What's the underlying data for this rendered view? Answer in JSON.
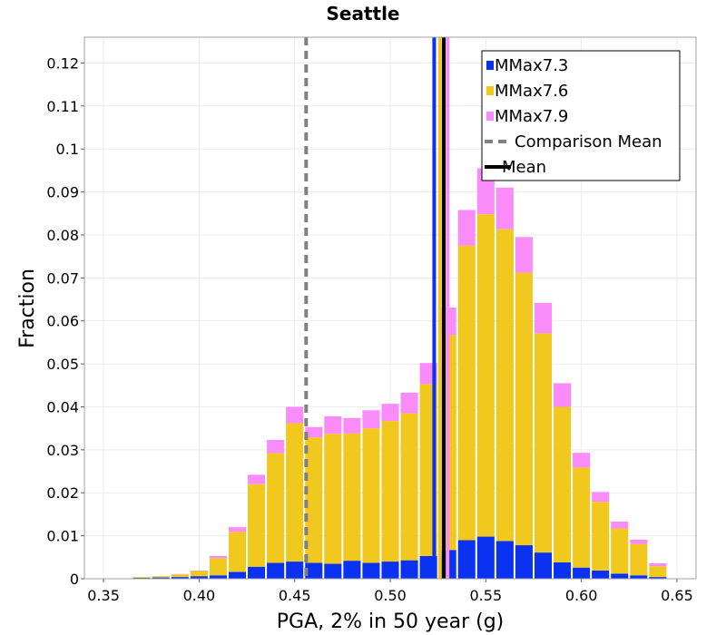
{
  "chart_data": {
    "type": "bar",
    "stacked": true,
    "title": "Seattle",
    "xlabel": "PGA, 2% in 50 year (g)",
    "ylabel": "Fraction",
    "xlim": [
      0.34,
      0.66
    ],
    "ylim": [
      0,
      0.126
    ],
    "xticks": [
      0.35,
      0.4,
      0.45,
      0.5,
      0.55,
      0.6,
      0.65
    ],
    "xtick_labels": [
      "0.35",
      "0.40",
      "0.45",
      "0.50",
      "0.55",
      "0.60",
      "0.65"
    ],
    "yticks": [
      0,
      0.01,
      0.02,
      0.03,
      0.04,
      0.05,
      0.06,
      0.07,
      0.08,
      0.09,
      0.1,
      0.11,
      0.12
    ],
    "ytick_labels": [
      "0",
      "0.01",
      "0.02",
      "0.03",
      "0.04",
      "0.05",
      "0.06",
      "0.07",
      "0.08",
      "0.09",
      "0.1",
      "0.11",
      "0.12"
    ],
    "grid": true,
    "legend_position": "top-right",
    "bin_centers": [
      0.37,
      0.38,
      0.39,
      0.4,
      0.41,
      0.42,
      0.43,
      0.44,
      0.45,
      0.46,
      0.47,
      0.48,
      0.49,
      0.5,
      0.51,
      0.52,
      0.53,
      0.54,
      0.55,
      0.56,
      0.57,
      0.58,
      0.59,
      0.6,
      0.61,
      0.62,
      0.63,
      0.64
    ],
    "series": [
      {
        "name": "MMax7.3",
        "color": "#0a32f0",
        "values": [
          0.0002,
          0.0003,
          0.0004,
          0.0006,
          0.0008,
          0.0016,
          0.0028,
          0.0037,
          0.004,
          0.0037,
          0.0035,
          0.0042,
          0.0037,
          0.004,
          0.0043,
          0.0053,
          0.0067,
          0.009,
          0.0098,
          0.0088,
          0.0078,
          0.0061,
          0.0038,
          0.0026,
          0.0019,
          0.0012,
          0.0008,
          0.0004
        ]
      },
      {
        "name": "MMax7.6",
        "color": "#f0c81e",
        "values": [
          0.0002,
          0.0003,
          0.0006,
          0.0012,
          0.004,
          0.0093,
          0.0192,
          0.0255,
          0.0322,
          0.0292,
          0.0302,
          0.0296,
          0.0313,
          0.0327,
          0.0342,
          0.04,
          0.05,
          0.0685,
          0.075,
          0.0725,
          0.0634,
          0.051,
          0.0362,
          0.0233,
          0.016,
          0.0105,
          0.0073,
          0.0025
        ]
      },
      {
        "name": "MMax7.9",
        "color": "#fa8cfa",
        "values": [
          0.0,
          0.0,
          0.0001,
          0.0001,
          0.0005,
          0.0011,
          0.0022,
          0.0031,
          0.0038,
          0.0024,
          0.0041,
          0.0036,
          0.0042,
          0.004,
          0.0048,
          0.0049,
          0.0064,
          0.0083,
          0.0107,
          0.0097,
          0.0083,
          0.0071,
          0.0055,
          0.0034,
          0.0023,
          0.0016,
          0.001,
          0.0007
        ]
      }
    ],
    "vlines": [
      {
        "name": "Comparison Mean",
        "x": 0.456,
        "style": "dashed",
        "color": "#808080"
      },
      {
        "name": "Mean",
        "x": 0.528,
        "style": "solid",
        "color": "#000000"
      },
      {
        "name": "",
        "x": 0.523,
        "style": "solid",
        "color": "#0a32f0"
      },
      {
        "name": "",
        "x": 0.526,
        "style": "solid",
        "color": "#f0c81e"
      },
      {
        "name": "",
        "x": 0.53,
        "style": "solid",
        "color": "#fa8cfa"
      }
    ],
    "legend": [
      {
        "label": "MMax7.3",
        "kind": "square",
        "color": "#0a32f0"
      },
      {
        "label": "MMax7.6",
        "kind": "square",
        "color": "#f0c81e"
      },
      {
        "label": "MMax7.9",
        "kind": "square",
        "color": "#fa8cfa"
      },
      {
        "label": "Comparison Mean",
        "kind": "dashed",
        "color": "#808080"
      },
      {
        "label": "Mean",
        "kind": "solid",
        "color": "#000000"
      }
    ]
  }
}
